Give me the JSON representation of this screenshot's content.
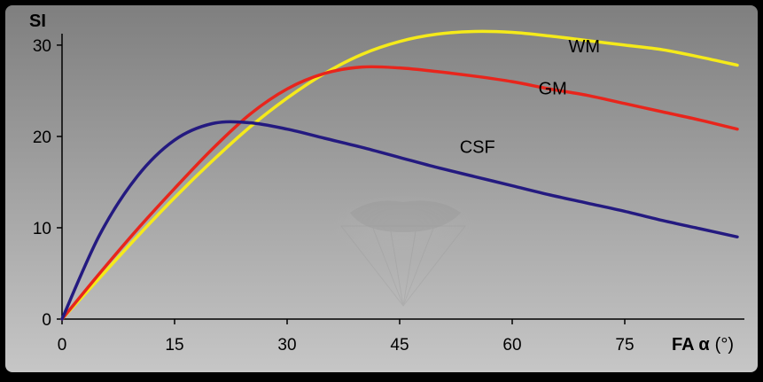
{
  "chart_data": {
    "type": "line",
    "title": "",
    "xlabel": "FA α",
    "xlabel_unit": "(°)",
    "ylabel": "SI",
    "xlim": [
      0,
      90
    ],
    "ylim": [
      0,
      33
    ],
    "x_ticks": [
      0,
      15,
      30,
      45,
      60,
      75
    ],
    "y_ticks": [
      0,
      10,
      20,
      30
    ],
    "grid": false,
    "legend": "inline-labels",
    "colors": {
      "background_top": "#7f7f7f",
      "background_bottom": "#c4c4c4",
      "axis": "#000000"
    },
    "series": [
      {
        "name": "WM",
        "color": "#f5ea1a",
        "x": [
          0,
          5,
          10,
          15,
          20,
          25,
          30,
          35,
          40,
          45,
          50,
          55,
          60,
          65,
          70,
          75,
          80,
          85,
          90
        ],
        "y": [
          0,
          4.5,
          9,
          13.3,
          17.3,
          21.0,
          24.2,
          26.9,
          29.0,
          30.4,
          31.2,
          31.5,
          31.4,
          31.0,
          30.5,
          30.0,
          29.5,
          28.7,
          27.8
        ]
      },
      {
        "name": "GM",
        "color": "#e8251c",
        "x": [
          0,
          5,
          10,
          15,
          20,
          25,
          30,
          35,
          40,
          45,
          50,
          55,
          60,
          65,
          70,
          75,
          80,
          85,
          90
        ],
        "y": [
          0,
          5.0,
          9.8,
          14.3,
          18.6,
          22.4,
          25.2,
          26.9,
          27.6,
          27.5,
          27.1,
          26.6,
          26.0,
          25.2,
          24.5,
          23.6,
          22.7,
          21.8,
          20.8
        ]
      },
      {
        "name": "CSF",
        "color": "#241a80",
        "x": [
          0,
          5,
          10,
          15,
          20,
          25,
          30,
          35,
          40,
          45,
          50,
          55,
          60,
          65,
          70,
          75,
          80,
          85,
          90
        ],
        "y": [
          0,
          9.2,
          15.6,
          19.6,
          21.4,
          21.5,
          20.8,
          19.8,
          18.8,
          17.7,
          16.6,
          15.6,
          14.6,
          13.6,
          12.7,
          11.8,
          10.8,
          9.9,
          9.0
        ]
      }
    ],
    "annotations": [
      {
        "text": "WM",
        "x": 67.5,
        "y": 29.2
      },
      {
        "text": "GM",
        "x": 63.5,
        "y": 24.6
      },
      {
        "text": "CSF",
        "x": 53,
        "y": 18.2
      }
    ]
  }
}
